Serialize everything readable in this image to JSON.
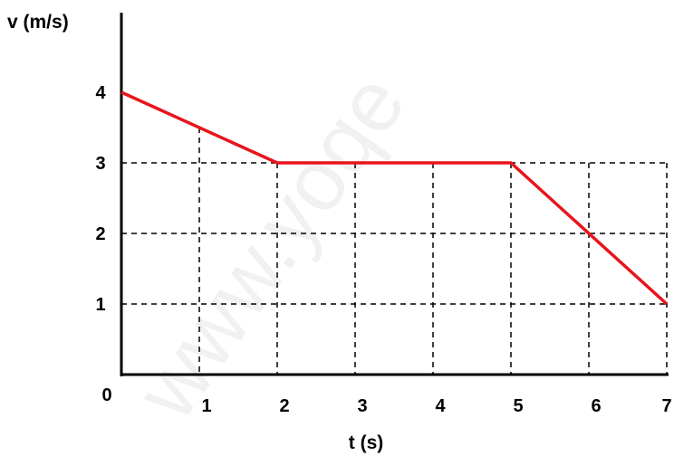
{
  "chart_data": {
    "type": "line",
    "xlabel": "t (s)",
    "ylabel": "v (m/s)",
    "xlim": [
      0,
      7
    ],
    "ylim": [
      0,
      4
    ],
    "x_ticks": [
      "0",
      "1",
      "2",
      "3",
      "4",
      "5",
      "6",
      "7"
    ],
    "y_ticks": [
      "1",
      "2",
      "3",
      "4"
    ],
    "grid": "dashed",
    "series": [
      {
        "x": [
          0,
          2,
          5,
          7
        ],
        "y": [
          4,
          3,
          3,
          1
        ],
        "color": "#e8141c"
      }
    ],
    "watermark": "www.yoqe"
  }
}
